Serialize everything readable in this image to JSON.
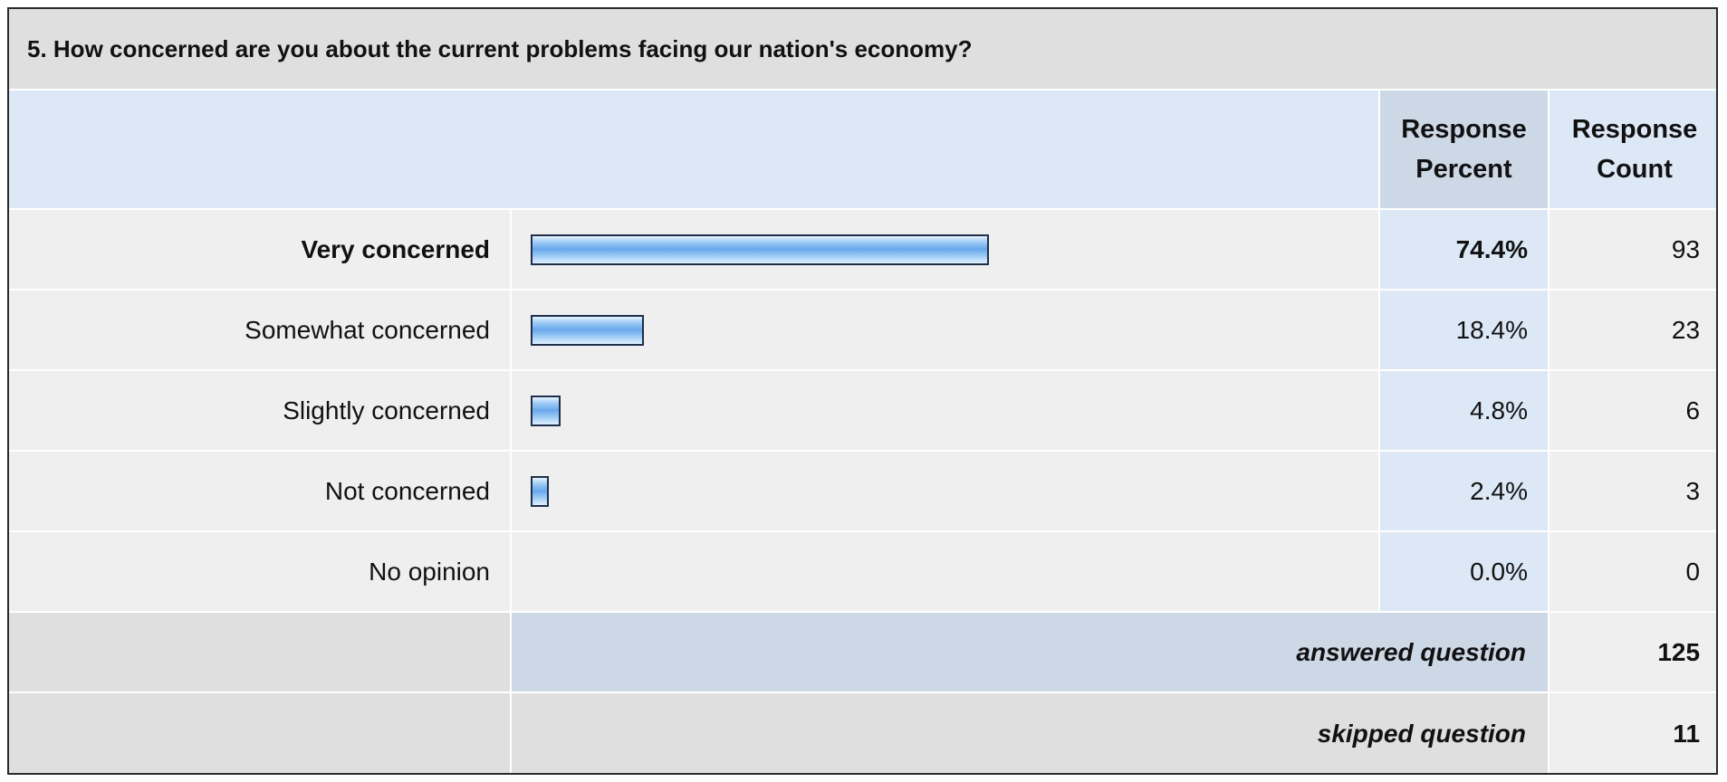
{
  "question": {
    "title": "5. How concerned are you about the current problems facing our nation's economy?"
  },
  "columns": {
    "percent": [
      "Response",
      "Percent"
    ],
    "count": [
      "Response",
      "Count"
    ]
  },
  "colors": {
    "bar_fill": "#6aa8ec",
    "bar_border": "#1f2f4a",
    "header_blue": "#dce8f6",
    "header_blue_dark": "#ccd8e6",
    "row_grey": "#efefef"
  },
  "chart_data": {
    "type": "bar",
    "orientation": "horizontal",
    "categories": [
      "Very concerned",
      "Somewhat concerned",
      "Slightly concerned",
      "Not concerned",
      "No opinion"
    ],
    "percent_labels": [
      "74.4%",
      "18.4%",
      "4.8%",
      "2.4%",
      "0.0%"
    ],
    "values": [
      74.4,
      18.4,
      4.8,
      2.4,
      0.0
    ],
    "counts": [
      "93",
      "23",
      "6",
      "3",
      "0"
    ],
    "bold_index": 0,
    "xlim": [
      0,
      100
    ]
  },
  "summary": {
    "answered_label": "answered question",
    "answered_value": "125",
    "skipped_label": "skipped question",
    "skipped_value": "11"
  }
}
